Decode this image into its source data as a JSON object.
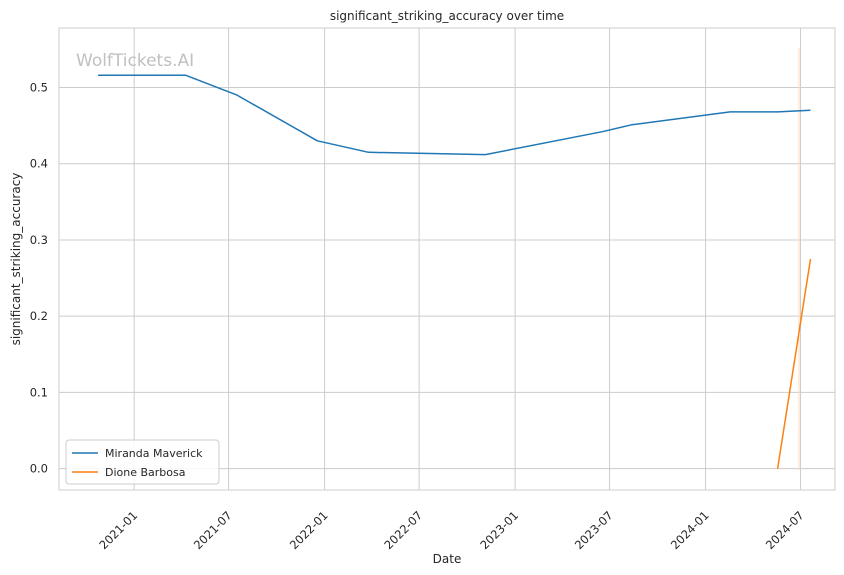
{
  "chart_data": {
    "type": "line",
    "title": "significant_striking_accuracy over time",
    "xlabel": "Date",
    "ylabel": "significant_striking_accuracy",
    "watermark": "WolfTickets.AI",
    "x_range": [
      "2020-08-10",
      "2024-09-05"
    ],
    "ylim": [
      -0.028,
      0.578
    ],
    "x_ticks": [
      "2021-01",
      "2021-07",
      "2022-01",
      "2022-07",
      "2023-01",
      "2023-07",
      "2024-01",
      "2024-07"
    ],
    "x_tick_dates": [
      "2021-01-01",
      "2021-07-01",
      "2022-01-01",
      "2022-07-01",
      "2023-01-01",
      "2023-07-01",
      "2024-01-01",
      "2024-07-01"
    ],
    "y_ticks": [
      0.0,
      0.1,
      0.2,
      0.3,
      0.4,
      0.5
    ],
    "y_tick_labels": [
      "0.0",
      "0.1",
      "0.2",
      "0.3",
      "0.4",
      "0.5"
    ],
    "grid": true,
    "legend_position": "lower-left",
    "series": [
      {
        "name": "Miranda Maverick",
        "color": "#1f77b4",
        "points": [
          {
            "x": "2020-10-24",
            "y": 0.516
          },
          {
            "x": "2021-04-10",
            "y": 0.516
          },
          {
            "x": "2021-07-17",
            "y": 0.49
          },
          {
            "x": "2021-12-18",
            "y": 0.43
          },
          {
            "x": "2022-03-26",
            "y": 0.415
          },
          {
            "x": "2022-11-05",
            "y": 0.412
          },
          {
            "x": "2023-06-17",
            "y": 0.442
          },
          {
            "x": "2023-08-12",
            "y": 0.451
          },
          {
            "x": "2024-02-17",
            "y": 0.468
          },
          {
            "x": "2024-05-18",
            "y": 0.468
          },
          {
            "x": "2024-07-20",
            "y": 0.47
          }
        ]
      },
      {
        "name": "Dione Barbosa",
        "color": "#ff7f0e",
        "points": [
          {
            "x": "2024-05-18",
            "y": 0.0
          },
          {
            "x": "2024-07-20",
            "y": 0.275
          }
        ]
      }
    ]
  }
}
